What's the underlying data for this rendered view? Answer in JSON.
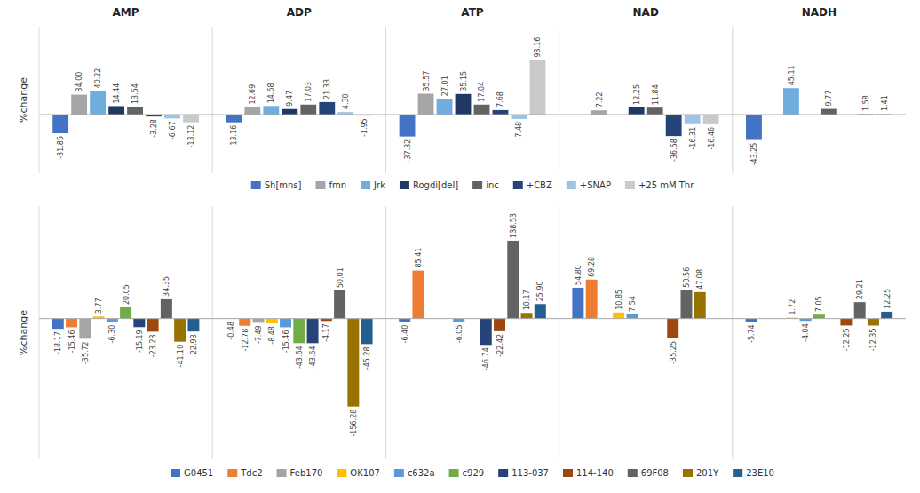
{
  "chart_data": [
    {
      "type": "bar",
      "ylabel": "%change",
      "categories": [
        "AMP",
        "ADP",
        "ATP",
        "NAD",
        "NADH"
      ],
      "ylim": [
        -100,
        150
      ],
      "grid": false,
      "legend": "bottom",
      "data_labels": true,
      "tick_labels": "x",
      "series": [
        {
          "name": "Sh[mns]",
          "color": "#4472C4",
          "values": [
            -31.85,
            -13.16,
            -37.32,
            0,
            -43.25
          ],
          "value_labels": [
            "-31.85",
            "-13.16",
            "-37.32",
            null,
            "-43.25"
          ]
        },
        {
          "name": "fmn",
          "color": "#A5A5A5",
          "values": [
            34.0,
            12.69,
            35.57,
            7.22,
            0
          ],
          "value_labels": [
            "34.00",
            "12.69",
            "35.57",
            "7.22",
            null
          ]
        },
        {
          "name": "Jrk",
          "color": "#70ADDE",
          "values": [
            40.22,
            14.68,
            27.01,
            0,
            45.11
          ],
          "value_labels": [
            "40.22",
            "14.68",
            "27.01",
            null,
            "45.11"
          ]
        },
        {
          "name": "Rogdi[del]",
          "color": "#203864",
          "values": [
            14.44,
            9.47,
            35.15,
            12.25,
            0
          ],
          "value_labels": [
            "14.44",
            "9.47",
            "35.15",
            "12.25",
            null
          ]
        },
        {
          "name": "inc",
          "color": "#636363",
          "values": [
            13.54,
            17.03,
            17.04,
            11.84,
            9.77
          ],
          "value_labels": [
            "13.54",
            "17.03",
            "17.04",
            "11.84",
            "9.77"
          ]
        },
        {
          "name": "+CBZ",
          "color": "#264478",
          "values": [
            -3.28,
            21.33,
            7.68,
            -36.58,
            0
          ],
          "value_labels": [
            "-3.28",
            "21.33",
            "7.68",
            "-36.58",
            null
          ]
        },
        {
          "name": "+SNAP",
          "color": "#9DC3E6",
          "values": [
            -6.67,
            4.3,
            -7.48,
            -16.31,
            1.58
          ],
          "value_labels": [
            "-6.67",
            "4.30",
            "-7.48",
            "-16.31",
            "1.58"
          ]
        },
        {
          "name": "+25 mM Thr",
          "color": "#C9C9C9",
          "values": [
            -13.12,
            -1.95,
            93.16,
            -16.46,
            1.41
          ],
          "value_labels": [
            "-13.12",
            "-1.95",
            "93.16",
            "-16.46",
            "1.41"
          ]
        }
      ]
    },
    {
      "type": "bar",
      "ylabel": "%change",
      "categories": [
        null,
        null,
        null,
        null,
        null
      ],
      "ylim": [
        -250,
        200
      ],
      "grid": false,
      "legend": "bottom",
      "data_labels": true,
      "tick_labels": false,
      "series": [
        {
          "name": "G0451",
          "color": "#4472C4",
          "values": [
            -18.17,
            -0.48,
            -6.4,
            54.8,
            -5.74
          ],
          "value_labels": [
            "-18.17",
            "-0.48",
            "-6.40",
            "54.80",
            "-5.74"
          ]
        },
        {
          "name": "Tdc2",
          "color": "#ED7D31",
          "values": [
            -15.46,
            -12.78,
            85.41,
            69.28,
            0
          ],
          "value_labels": [
            "-15.46",
            "-12.78",
            "85.41",
            "69.28",
            null
          ]
        },
        {
          "name": "Feb170",
          "color": "#A5A5A5",
          "values": [
            -35.72,
            -7.49,
            0,
            0,
            0
          ],
          "value_labels": [
            "-35.72",
            "-7.49",
            null,
            null,
            null
          ]
        },
        {
          "name": "OK107",
          "color": "#FFC000",
          "values": [
            3.77,
            -8.48,
            0,
            10.85,
            1.72
          ],
          "value_labels": [
            "3.77",
            "-8.48",
            null,
            "10.85",
            "1.72"
          ]
        },
        {
          "name": "c632a",
          "color": "#5B9BD5",
          "values": [
            -6.3,
            -15.46,
            -6.05,
            7.54,
            -4.04
          ],
          "value_labels": [
            "-6.30",
            "-15.46",
            "-6.05",
            "7.54",
            "-4.04"
          ]
        },
        {
          "name": "c929",
          "color": "#70AD47",
          "values": [
            20.05,
            -43.64,
            0,
            0,
            7.05
          ],
          "value_labels": [
            "20.05",
            "-43.64",
            null,
            null,
            "7.05"
          ]
        },
        {
          "name": "113-037",
          "color": "#264478",
          "values": [
            -15.19,
            -43.64,
            -46.74,
            0,
            0
          ],
          "value_labels": [
            "-15.19",
            "-43.64",
            "-46.74",
            null,
            null
          ]
        },
        {
          "name": "114-140",
          "color": "#9E480E",
          "values": [
            -23.23,
            -4.17,
            -22.42,
            -35.25,
            -12.25
          ],
          "value_labels": [
            "-23.23",
            "-4.17",
            "-22.42",
            "-35.25",
            "-12.25"
          ]
        },
        {
          "name": "69F08",
          "color": "#636363",
          "values": [
            34.35,
            50.01,
            138.53,
            50.56,
            29.21
          ],
          "value_labels": [
            "34.35",
            "50.01",
            "138.53",
            "50.56",
            "29.21"
          ]
        },
        {
          "name": "201Y",
          "color": "#997300",
          "values": [
            -41.1,
            -156.28,
            10.17,
            47.08,
            -12.35
          ],
          "value_labels": [
            "-41.10",
            "-156.28",
            "10.17",
            "47.08",
            "-12.35"
          ]
        },
        {
          "name": "23E10",
          "color": "#255E91",
          "values": [
            -22.93,
            -45.28,
            25.9,
            0,
            12.25
          ],
          "value_labels": [
            "-22.93",
            "-45.28",
            "25.90",
            null,
            "12.25"
          ]
        }
      ]
    }
  ]
}
